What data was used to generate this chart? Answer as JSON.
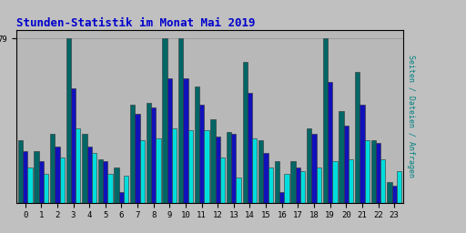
{
  "title": "Stunden-Statistik im Monat Mai 2019",
  "title_color": "#0000cc",
  "title_fontsize": 9,
  "xlabel_values": [
    0,
    1,
    2,
    3,
    4,
    5,
    6,
    7,
    8,
    9,
    10,
    11,
    12,
    13,
    14,
    15,
    16,
    17,
    18,
    19,
    20,
    21,
    22,
    23
  ],
  "ylim": [
    0,
    83
  ],
  "background_color": "#c0c0c0",
  "plot_bg_color": "#b8b8b8",
  "grid_color": "#999999",
  "right_label": "Seiten / Dateien / Anfragen",
  "right_label_color": "#008080",
  "bar_width": 0.3,
  "seiten": [
    30,
    25,
    33,
    79,
    33,
    21,
    17,
    47,
    48,
    79,
    79,
    56,
    40,
    34,
    68,
    30,
    20,
    20,
    36,
    79,
    44,
    63,
    30,
    10
  ],
  "dateien": [
    25,
    20,
    27,
    55,
    27,
    20,
    5,
    43,
    46,
    60,
    60,
    47,
    32,
    33,
    53,
    24,
    5,
    17,
    33,
    58,
    37,
    47,
    29,
    8
  ],
  "anfragen": [
    17,
    14,
    22,
    36,
    24,
    14,
    13,
    30,
    31,
    36,
    35,
    35,
    22,
    12,
    31,
    17,
    14,
    15,
    17,
    20,
    21,
    30,
    21,
    15
  ],
  "color_seiten": "#006666",
  "color_dateien": "#1111bb",
  "color_anfragen": "#00dddd",
  "tick_fontsize": 6.5
}
